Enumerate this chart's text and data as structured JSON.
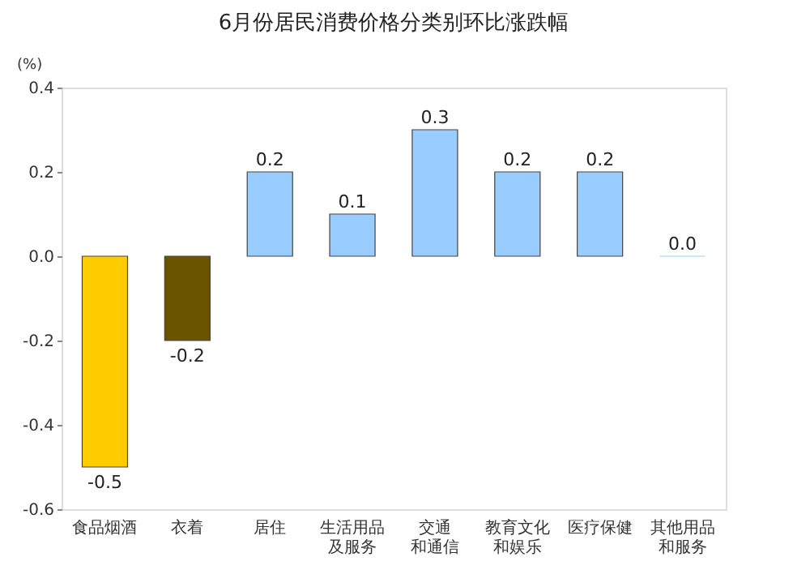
{
  "chart_data": {
    "type": "bar",
    "title": "6月份居民消费价格分类别环比涨跌幅",
    "ylabel": "(%)",
    "categories": [
      "食品烟酒",
      "衣着",
      "居住",
      "生活用品及服务",
      "交通和通信",
      "教育文化和娱乐",
      "医疗保健",
      "其他用品和服务"
    ],
    "value_labels": [
      "-0.5",
      "-0.2",
      "0.2",
      "0.1",
      "0.3",
      "0.2",
      "0.2",
      "0.0"
    ],
    "values": [
      -0.5,
      -0.2,
      0.2,
      0.1,
      0.3,
      0.2,
      0.2,
      0.0
    ],
    "colors": [
      "#ffcc00",
      "#6b5400",
      "#99ccff",
      "#99ccff",
      "#99ccff",
      "#99ccff",
      "#99ccff",
      "#99ccff"
    ],
    "ylim": [
      -0.6,
      0.4
    ],
    "yticks": [
      -0.6,
      -0.4,
      -0.2,
      {
        "value": 0,
        "label": "0.0"
      },
      0.2,
      0.4
    ],
    "grid": false
  }
}
